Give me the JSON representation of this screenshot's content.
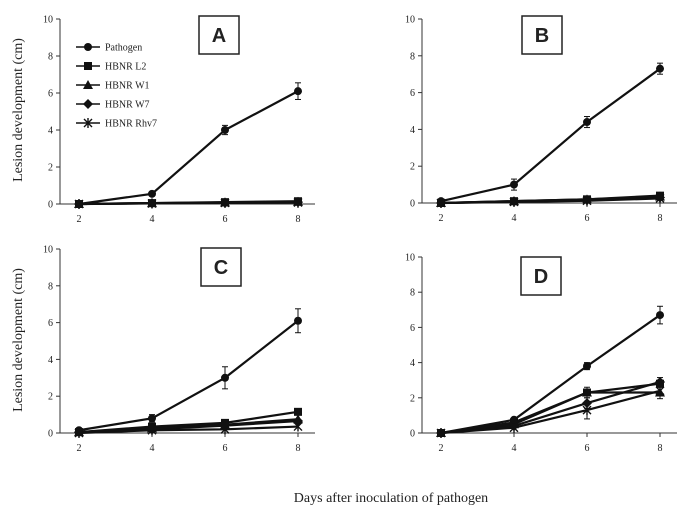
{
  "figure": {
    "shared_xlabel": "Days after inoculation of pathogen"
  },
  "chart_data": [
    {
      "panel": "A",
      "type": "line",
      "x": [
        2,
        4,
        6,
        8
      ],
      "xticks": [
        "2",
        "4",
        "6",
        "8"
      ],
      "ylabel": "Lesion development (cm)",
      "ylim": [
        0,
        10
      ],
      "yticks": [
        "0",
        "2",
        "4",
        "6",
        "8",
        "10"
      ],
      "legend": "top-left",
      "series": [
        {
          "name": "Pathogen",
          "marker": "circle",
          "values": [
            0.0,
            0.55,
            4.0,
            6.1
          ],
          "errors": [
            0,
            0.1,
            0.25,
            0.45
          ]
        },
        {
          "name": "HBNR L2",
          "marker": "square",
          "values": [
            0.0,
            0.05,
            0.1,
            0.15
          ],
          "errors": [
            0,
            0,
            0,
            0
          ]
        },
        {
          "name": "HBNR W1",
          "marker": "triangle",
          "values": [
            0.0,
            0.05,
            0.08,
            0.12
          ],
          "errors": [
            0,
            0,
            0,
            0
          ]
        },
        {
          "name": "HBNR W7",
          "marker": "diamond",
          "values": [
            0.0,
            0.04,
            0.07,
            0.1
          ],
          "errors": [
            0,
            0,
            0,
            0
          ]
        },
        {
          "name": "HBNR Rhv7",
          "marker": "star",
          "values": [
            0.0,
            0.03,
            0.06,
            0.08
          ],
          "errors": [
            0,
            0,
            0,
            0
          ]
        }
      ]
    },
    {
      "panel": "B",
      "type": "line",
      "x": [
        2,
        4,
        6,
        8
      ],
      "xticks": [
        "2",
        "4",
        "6",
        "8"
      ],
      "ylabel": "",
      "ylim": [
        0,
        10
      ],
      "yticks": [
        "0",
        "2",
        "4",
        "6",
        "8",
        "10"
      ],
      "series": [
        {
          "name": "Pathogen",
          "marker": "circle",
          "values": [
            0.1,
            1.0,
            4.4,
            7.3
          ],
          "errors": [
            0,
            0.3,
            0.3,
            0.3
          ]
        },
        {
          "name": "HBNR L2",
          "marker": "square",
          "values": [
            0.0,
            0.1,
            0.2,
            0.4
          ],
          "errors": [
            0,
            0,
            0,
            0
          ]
        },
        {
          "name": "HBNR W1",
          "marker": "triangle",
          "values": [
            0.0,
            0.1,
            0.2,
            0.35
          ],
          "errors": [
            0,
            0,
            0,
            0
          ]
        },
        {
          "name": "HBNR W7",
          "marker": "diamond",
          "values": [
            0.0,
            0.08,
            0.15,
            0.3
          ],
          "errors": [
            0,
            0,
            0,
            0
          ]
        },
        {
          "name": "HBNR Rhv7",
          "marker": "star",
          "values": [
            0.0,
            0.06,
            0.12,
            0.25
          ],
          "errors": [
            0,
            0,
            0,
            0
          ]
        }
      ]
    },
    {
      "panel": "C",
      "type": "line",
      "x": [
        2,
        4,
        6,
        8
      ],
      "xticks": [
        "2",
        "4",
        "6",
        "8"
      ],
      "ylabel": "Lesion development (cm)",
      "ylim": [
        0,
        10
      ],
      "yticks": [
        "0",
        "2",
        "4",
        "6",
        "8",
        "10"
      ],
      "series": [
        {
          "name": "Pathogen",
          "marker": "circle",
          "values": [
            0.15,
            0.8,
            3.0,
            6.1
          ],
          "errors": [
            0,
            0.2,
            0.6,
            0.65
          ]
        },
        {
          "name": "HBNR L2",
          "marker": "square",
          "values": [
            0.05,
            0.35,
            0.55,
            1.15
          ],
          "errors": [
            0,
            0,
            0,
            0
          ]
        },
        {
          "name": "HBNR W1",
          "marker": "triangle",
          "values": [
            0.05,
            0.25,
            0.45,
            0.75
          ],
          "errors": [
            0,
            0,
            0,
            0
          ]
        },
        {
          "name": "HBNR W7",
          "marker": "diamond",
          "values": [
            0.05,
            0.2,
            0.4,
            0.65
          ],
          "errors": [
            0,
            0,
            0,
            0
          ]
        },
        {
          "name": "HBNR Rhv7",
          "marker": "star",
          "values": [
            0.0,
            0.15,
            0.2,
            0.35
          ],
          "errors": [
            0,
            0,
            0,
            0
          ]
        }
      ]
    },
    {
      "panel": "D",
      "type": "line",
      "x": [
        2,
        4,
        6,
        8
      ],
      "xticks": [
        "2",
        "4",
        "6",
        "8"
      ],
      "ylabel": "",
      "ylim": [
        0,
        10
      ],
      "yticks": [
        "0",
        "2",
        "4",
        "6",
        "8",
        "10"
      ],
      "series": [
        {
          "name": "Pathogen",
          "marker": "circle",
          "values": [
            0.0,
            0.75,
            3.8,
            6.7
          ],
          "errors": [
            0,
            0.1,
            0.2,
            0.5
          ]
        },
        {
          "name": "HBNR L2",
          "marker": "square",
          "values": [
            0.0,
            0.6,
            2.3,
            2.8
          ],
          "errors": [
            0,
            0,
            0.2,
            0.2
          ]
        },
        {
          "name": "HBNR W1",
          "marker": "triangle",
          "values": [
            0.0,
            0.5,
            2.3,
            2.3
          ],
          "errors": [
            0,
            0,
            0.3,
            0.35
          ]
        },
        {
          "name": "HBNR W7",
          "marker": "diamond",
          "values": [
            0.0,
            0.4,
            1.7,
            2.9
          ],
          "errors": [
            0,
            0,
            0.3,
            0.25
          ]
        },
        {
          "name": "HBNR Rhv7",
          "marker": "star",
          "values": [
            0.0,
            0.3,
            1.3,
            2.4
          ],
          "errors": [
            0,
            0,
            0.5,
            0.2
          ]
        }
      ]
    }
  ]
}
